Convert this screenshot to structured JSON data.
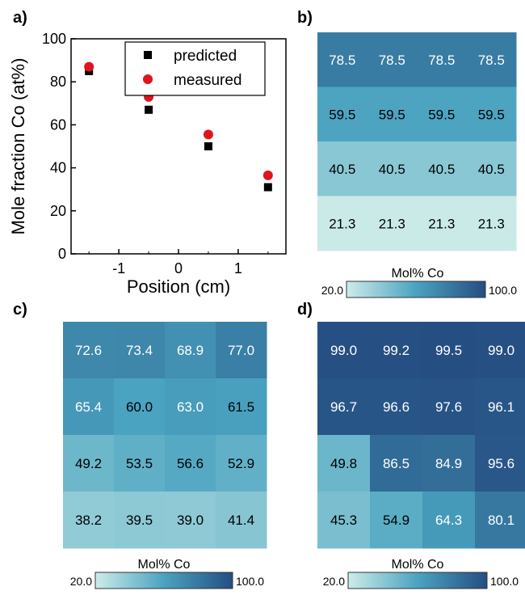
{
  "panel_labels": [
    "a)",
    "b)",
    "c)",
    "d)"
  ],
  "chart_data": [
    {
      "type": "scatter",
      "panel": "a)",
      "xlabel": "Position (cm)",
      "ylabel": "Mole fraction Co (at%)",
      "xlim": [
        -1.8,
        1.8
      ],
      "ylim": [
        0,
        100
      ],
      "xticks": [
        "-1",
        "0",
        "1"
      ],
      "yticks": [
        "0",
        "20",
        "40",
        "60",
        "80",
        "100"
      ],
      "legend_position": "top-right",
      "series": [
        {
          "name": "predicted",
          "marker": "square",
          "color": "#000000",
          "x": [
            -1.5,
            -0.5,
            0.5,
            1.5
          ],
          "y": [
            85,
            67,
            50,
            31
          ]
        },
        {
          "name": "measured",
          "marker": "circle",
          "color": "#e0141c",
          "x": [
            -1.5,
            -0.5,
            0.5,
            1.5
          ],
          "y": [
            87,
            73,
            55.5,
            36.5
          ]
        }
      ]
    },
    {
      "type": "heatmap",
      "panel": "b)",
      "rows": [
        [
          78.5,
          78.5,
          78.5,
          78.5
        ],
        [
          59.5,
          59.5,
          59.5,
          59.5
        ],
        [
          40.5,
          40.5,
          40.5,
          40.5
        ],
        [
          21.3,
          21.3,
          21.3,
          21.3
        ]
      ],
      "colorbar": {
        "title": "Mol% Co",
        "min": 20.0,
        "max": 100.0,
        "min_label": "20.0",
        "max_label": "100.0"
      }
    },
    {
      "type": "heatmap",
      "panel": "c)",
      "rows": [
        [
          72.6,
          73.4,
          68.9,
          77.0
        ],
        [
          65.4,
          60.0,
          63.0,
          61.5
        ],
        [
          49.2,
          53.5,
          56.6,
          52.9
        ],
        [
          38.2,
          39.5,
          39.0,
          41.4
        ]
      ],
      "colorbar": {
        "title": "Mol% Co",
        "min": 20.0,
        "max": 100.0,
        "min_label": "20.0",
        "max_label": "100.0"
      }
    },
    {
      "type": "heatmap",
      "panel": "d)",
      "rows": [
        [
          99.0,
          99.2,
          99.5,
          99.0
        ],
        [
          96.7,
          96.6,
          97.6,
          96.1
        ],
        [
          49.8,
          86.5,
          84.9,
          95.6
        ],
        [
          45.3,
          54.9,
          64.3,
          80.1
        ]
      ],
      "colorbar": {
        "title": "Mol% Co",
        "min": 20.0,
        "max": 100.0,
        "min_label": "20.0",
        "max_label": "100.0"
      }
    }
  ],
  "colors": {
    "low": "#cdece8",
    "mid": "#4aa3c0",
    "high": "#254e82",
    "measured": "#e0141c",
    "predicted": "#000000"
  }
}
